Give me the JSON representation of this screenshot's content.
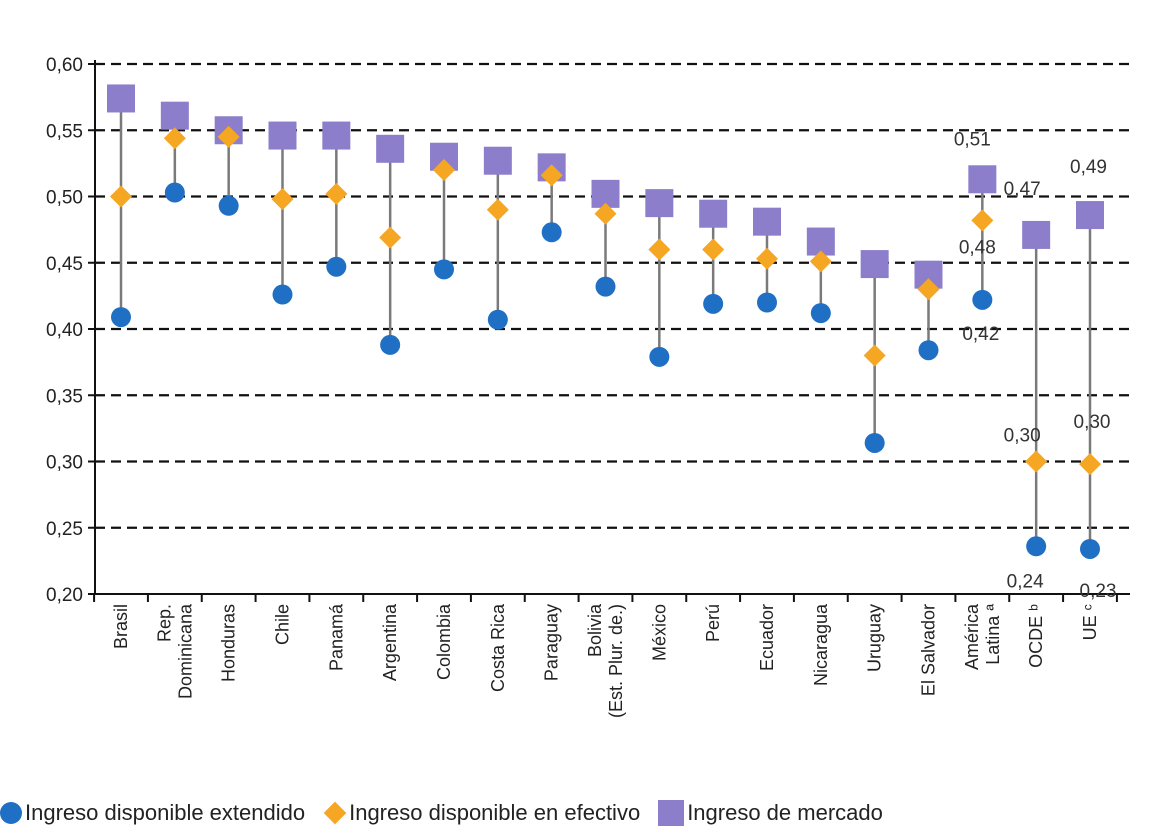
{
  "chart_data": {
    "type": "scatter",
    "categories": [
      [
        "Brasil"
      ],
      [
        "Rep.",
        "Dominicana"
      ],
      [
        "Honduras"
      ],
      [
        "Chile"
      ],
      [
        "Panamá"
      ],
      [
        "Argentina"
      ],
      [
        "Colombia"
      ],
      [
        "Costa Rica"
      ],
      [
        "Paraguay"
      ],
      [
        "Bolivia",
        "(Est. Plur. de.)"
      ],
      [
        "México"
      ],
      [
        "Perú"
      ],
      [
        "Ecuador"
      ],
      [
        "Nicaragua"
      ],
      [
        "Uruguay"
      ],
      [
        "El Salvador"
      ],
      [
        "América",
        "Latina ª"
      ],
      [
        "OCDE ᵇ"
      ],
      [
        "UE ᶜ"
      ]
    ],
    "series": [
      {
        "name": "Ingreso disponible extendido",
        "color": "#1f6fc5",
        "marker": "circle",
        "values": [
          0.409,
          0.503,
          0.493,
          0.426,
          0.447,
          0.388,
          0.445,
          0.407,
          0.473,
          0.432,
          0.379,
          0.419,
          0.42,
          0.412,
          0.314,
          0.384,
          0.422,
          0.236,
          0.234
        ]
      },
      {
        "name": "Ingreso disponible en efectivo",
        "color": "#f5a623",
        "marker": "diamond",
        "values": [
          0.5,
          0.544,
          0.545,
          0.498,
          0.502,
          0.469,
          0.52,
          0.49,
          0.516,
          0.487,
          0.46,
          0.46,
          0.453,
          0.451,
          0.38,
          0.43,
          0.482,
          0.3,
          0.298
        ]
      },
      {
        "name": "Ingreso de mercado",
        "color": "#8c7ecb",
        "marker": "square",
        "values": [
          0.574,
          0.561,
          0.55,
          0.546,
          0.546,
          0.536,
          0.53,
          0.527,
          0.522,
          0.502,
          0.495,
          0.487,
          0.481,
          0.466,
          0.449,
          0.441,
          0.513,
          0.471,
          0.486
        ]
      }
    ],
    "ylim": [
      0.2,
      0.6
    ],
    "yticks": [
      "0,20",
      "0,25",
      "0,30",
      "0,35",
      "0,40",
      "0,45",
      "0,50",
      "0,55",
      "0,60"
    ],
    "grid": true,
    "legend_position": "bottom",
    "annotations": [
      {
        "text": "0,51",
        "category": 16,
        "value": 0.513
      },
      {
        "text": "0,48",
        "category": 16,
        "value": 0.482
      },
      {
        "text": "0,42",
        "category": 16,
        "value": 0.422
      },
      {
        "text": "0,47",
        "category": 17,
        "value": 0.471
      },
      {
        "text": "0,30",
        "category": 17,
        "value": 0.3
      },
      {
        "text": "0,24",
        "category": 17,
        "value": 0.236
      },
      {
        "text": "0,49",
        "category": 18,
        "value": 0.486
      },
      {
        "text": "0,30",
        "category": 18,
        "value": 0.298
      },
      {
        "text": "0,23",
        "category": 18,
        "value": 0.234
      }
    ]
  }
}
